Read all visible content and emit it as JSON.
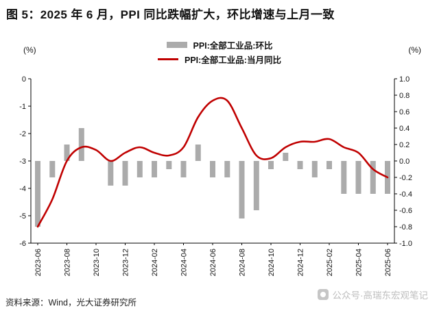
{
  "figure": {
    "title": "图 5：2025 年 6 月，PPI 同比跌幅扩大，环比增速与上月一致",
    "source": "资料来源：Wind，光大证券研究所",
    "watermark": "公众号·高瑞东宏观笔记"
  },
  "legend": {
    "mom_label": "PPI:全部工业品:环比",
    "yoy_label": "PPI:全部工业品:当月同比"
  },
  "axes": {
    "left_unit": "(%)",
    "right_unit": "(%)"
  },
  "colors": {
    "line": "#C00000",
    "bar": "#ABABAB",
    "axis": "#000000",
    "tick_text": "#111111"
  },
  "chart_data": {
    "type": "bar",
    "title": "PPI 同比与环比",
    "x": [
      "2023-06",
      "2023-07",
      "2023-08",
      "2023-09",
      "2023-10",
      "2023-11",
      "2023-12",
      "2024-01",
      "2024-02",
      "2024-03",
      "2024-04",
      "2024-05",
      "2024-06",
      "2024-07",
      "2024-08",
      "2024-09",
      "2024-10",
      "2024-11",
      "2024-12",
      "2025-01",
      "2025-02",
      "2025-03",
      "2025-04",
      "2025-05",
      "2025-06"
    ],
    "x_tick_every": 2,
    "series": [
      {
        "name": "PPI:全部工业品:环比",
        "type": "bar",
        "axis": "right",
        "values": [
          -0.8,
          -0.2,
          0.2,
          0.4,
          0.0,
          -0.3,
          -0.3,
          -0.2,
          -0.2,
          -0.1,
          -0.2,
          0.2,
          -0.2,
          -0.2,
          -0.7,
          -0.6,
          -0.1,
          0.1,
          -0.1,
          -0.2,
          -0.1,
          -0.4,
          -0.4,
          -0.4,
          -0.4
        ]
      },
      {
        "name": "PPI:全部工业品:当月同比",
        "type": "line",
        "axis": "left",
        "values": [
          -5.4,
          -4.4,
          -3.0,
          -2.5,
          -2.6,
          -3.0,
          -2.7,
          -2.5,
          -2.7,
          -2.8,
          -2.5,
          -1.4,
          -0.8,
          -0.8,
          -1.8,
          -2.8,
          -2.9,
          -2.5,
          -2.3,
          -2.3,
          -2.2,
          -2.5,
          -2.7,
          -3.3,
          -3.6
        ]
      }
    ],
    "left_axis": {
      "min": -6,
      "max": 0,
      "ticks": [
        0,
        -1,
        -2,
        -3,
        -4,
        -5,
        -6
      ],
      "label": "(%)"
    },
    "right_axis": {
      "min": -1.0,
      "max": 1.0,
      "ticks": [
        1.0,
        0.8,
        0.6,
        0.4,
        0.2,
        0.0,
        -0.2,
        -0.4,
        -0.6,
        -0.8,
        -1.0
      ],
      "label": "(%)"
    },
    "grid": false,
    "legend_position": "top-center"
  }
}
